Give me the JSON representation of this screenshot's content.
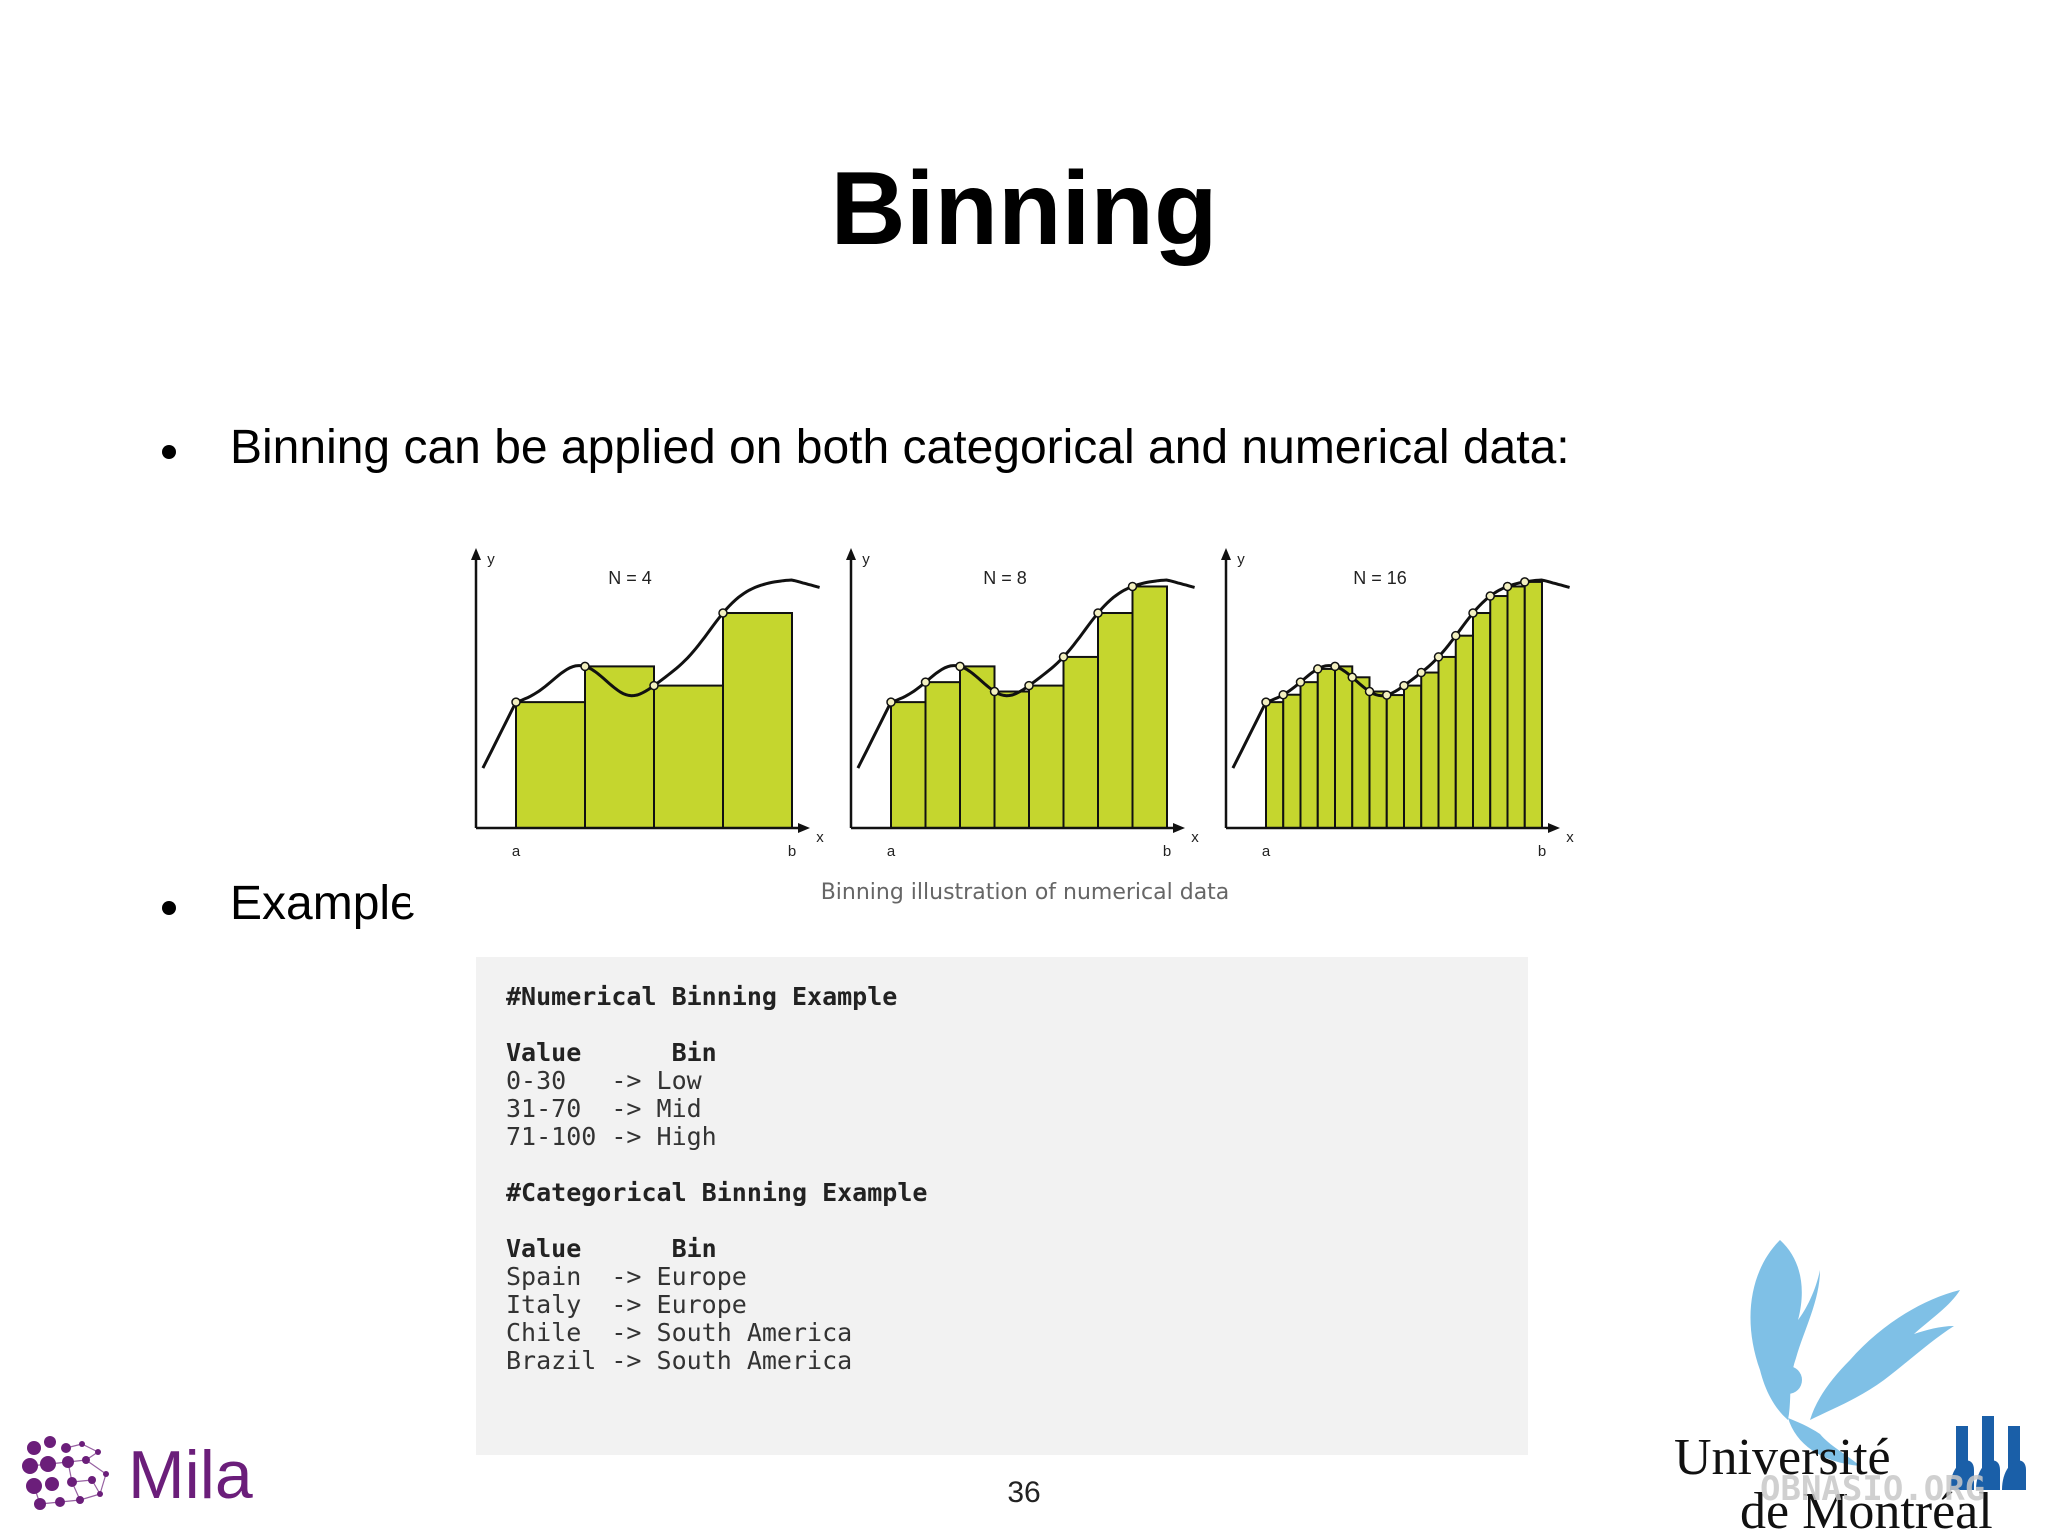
{
  "slide": {
    "title": "Binning",
    "bullets": [
      "Binning can be applied on both categorical and numerical data:",
      "Example"
    ],
    "page_number": "36"
  },
  "figure": {
    "caption": "Binning illustration of numerical data",
    "fill_color": "#c5d62e",
    "panels": [
      {
        "label": "N = 4",
        "n": 4,
        "y_axis": "y",
        "x_axis": "x",
        "a": "a",
        "b": "b"
      },
      {
        "label": "N = 8",
        "n": 8,
        "y_axis": "y",
        "x_axis": "x",
        "a": "a",
        "b": "b"
      },
      {
        "label": "N = 16",
        "n": 16,
        "y_axis": "y",
        "x_axis": "x",
        "a": "a",
        "b": "b"
      }
    ]
  },
  "code": {
    "numerical_header": "#Numerical Binning Example",
    "numerical_columns": [
      "Value",
      "Bin"
    ],
    "numerical_rows": [
      [
        "0-30",
        "Low"
      ],
      [
        "31-70",
        "Mid"
      ],
      [
        "71-100",
        "High"
      ]
    ],
    "categorical_header": "#Categorical Binning Example",
    "categorical_columns": [
      "Value",
      "Bin"
    ],
    "categorical_rows": [
      [
        "Spain",
        "Europe"
      ],
      [
        "Italy",
        "Europe"
      ],
      [
        "Chile",
        "South America"
      ],
      [
        "Brazil",
        "South America"
      ]
    ],
    "arrow": "->"
  },
  "logos": {
    "mila_text": "Mila",
    "mila_color": "#6b1e7a",
    "udem_line1": "Université",
    "udem_line2": "de Montréal",
    "udem_color": "#1a5fa8",
    "watermark": "OBNASIO.ORG"
  }
}
